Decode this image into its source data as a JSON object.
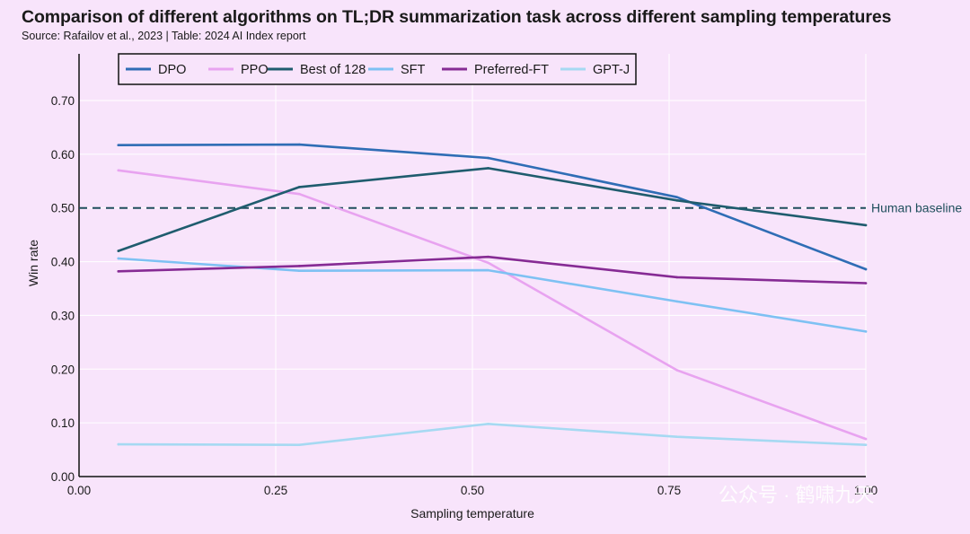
{
  "title": "Comparison of different algorithms on TL;DR summarization task across different sampling temperatures",
  "subtitle": "Source: Rafailov et al., 2023 | Table: 2024 AI Index report",
  "watermark": "公众号 · 鹤啸九天",
  "colors": {
    "background": "#f8e4fb",
    "grid": "#ffffff",
    "baseline": "#1f4e5c"
  },
  "chart_data": {
    "type": "line",
    "xlabel": "Sampling temperature",
    "ylabel": "Win rate",
    "xlim": [
      0,
      1
    ],
    "ylim": [
      0,
      0.75
    ],
    "xticks": [
      0,
      0.25,
      0.5,
      0.75,
      1.0
    ],
    "xtick_labels": [
      "0.00",
      "0.25",
      "0.50",
      "0.75",
      "1.00"
    ],
    "yticks": [
      0,
      0.1,
      0.2,
      0.3,
      0.4,
      0.5,
      0.6,
      0.7
    ],
    "ytick_labels": [
      "0.00",
      "0.10",
      "0.20",
      "0.30",
      "0.40",
      "0.50",
      "0.60",
      "0.70"
    ],
    "x": [
      0.05,
      0.28,
      0.52,
      0.76,
      1.0
    ],
    "series": [
      {
        "name": "DPO",
        "color": "#2f6db5",
        "values": [
          0.617,
          0.618,
          0.593,
          0.52,
          0.386
        ]
      },
      {
        "name": "PPO",
        "color": "#e8a3f0",
        "values": [
          0.57,
          0.526,
          0.398,
          0.198,
          0.07
        ]
      },
      {
        "name": "Best of 128",
        "color": "#1f5c6e",
        "values": [
          0.42,
          0.539,
          0.574,
          0.514,
          0.468
        ]
      },
      {
        "name": "SFT",
        "color": "#7ec1f3",
        "values": [
          0.406,
          0.383,
          0.384,
          0.326,
          0.27
        ]
      },
      {
        "name": "Preferred-FT",
        "color": "#862b94",
        "values": [
          0.382,
          0.392,
          0.409,
          0.371,
          0.36
        ]
      },
      {
        "name": "GPT-J",
        "color": "#a6d9f2",
        "values": [
          0.06,
          0.059,
          0.098,
          0.074,
          0.059
        ]
      }
    ],
    "baseline": {
      "label": "Human baseline",
      "value": 0.5
    },
    "legend": "top-left, 1 row",
    "grid": true
  }
}
